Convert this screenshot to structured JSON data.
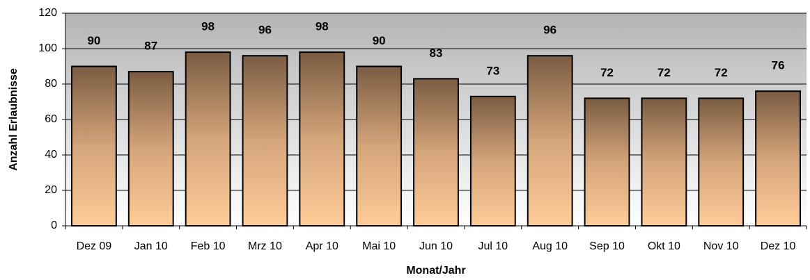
{
  "chart_data": {
    "type": "bar",
    "x_label": "Monat/Jahr",
    "y_label": "Anzahl Erlaubnisse",
    "categories": [
      "Dez 09",
      "Jan 10",
      "Feb 10",
      "Mrz 10",
      "Apr 10",
      "Mai 10",
      "Jun 10",
      "Jul 10",
      "Aug 10",
      "Sep 10",
      "Okt 10",
      "Nov 10",
      "Dez 10"
    ],
    "values": [
      90,
      87,
      98,
      96,
      98,
      90,
      83,
      73,
      96,
      72,
      72,
      72,
      76
    ],
    "ylim": [
      0,
      120
    ],
    "yticks": [
      0,
      20,
      40,
      60,
      80,
      100,
      120
    ],
    "grid": true
  }
}
